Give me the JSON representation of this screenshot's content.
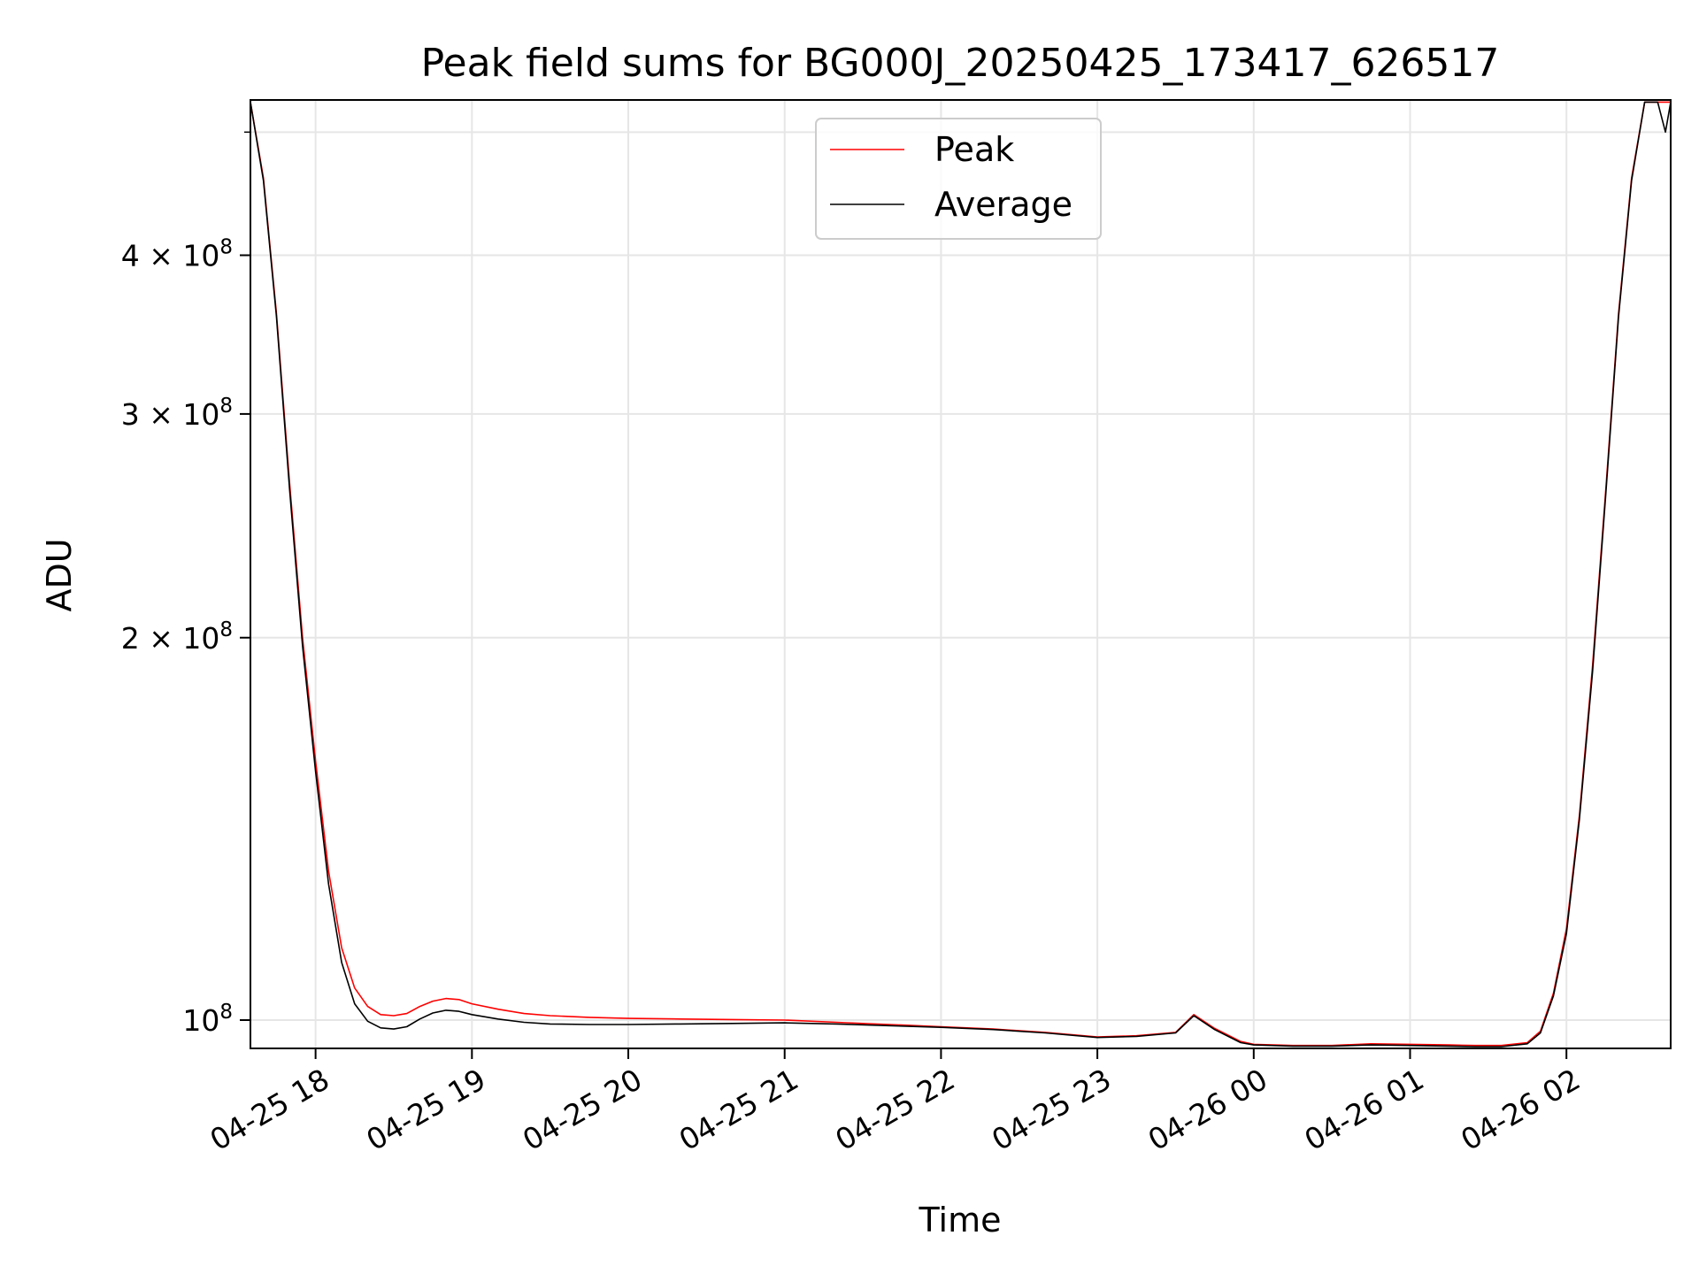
{
  "chart_data": {
    "type": "line",
    "title": "Peak field sums for BG000J_20250425_173417_626517",
    "xlabel": "Time",
    "ylabel": "ADU",
    "y_scale": "log",
    "x_range": [
      "2025-04-25 17:35",
      "2025-04-26 02:40"
    ],
    "y_range": [
      95000000,
      530000000
    ],
    "x_ticks": [
      {
        "value": "2025-04-25 18:00",
        "label": "04-25 18"
      },
      {
        "value": "2025-04-25 19:00",
        "label": "04-25 19"
      },
      {
        "value": "2025-04-25 20:00",
        "label": "04-25 20"
      },
      {
        "value": "2025-04-25 21:00",
        "label": "04-25 21"
      },
      {
        "value": "2025-04-25 22:00",
        "label": "04-25 22"
      },
      {
        "value": "2025-04-25 23:00",
        "label": "04-25 23"
      },
      {
        "value": "2025-04-26 00:00",
        "label": "04-26 00"
      },
      {
        "value": "2025-04-26 01:00",
        "label": "04-26 01"
      },
      {
        "value": "2025-04-26 02:00",
        "label": "04-26 02"
      }
    ],
    "y_ticks": [
      {
        "value": 100000000,
        "base": "10",
        "exp": "8"
      },
      {
        "value": 200000000,
        "base": "2 × 10",
        "exp": "8"
      },
      {
        "value": 300000000,
        "base": "3 × 10",
        "exp": "8"
      },
      {
        "value": 400000000,
        "base": "4 × 10",
        "exp": "8"
      }
    ],
    "y_minor_ticks": [
      500000000
    ],
    "grid": true,
    "legend_position": "upper-center",
    "series": [
      {
        "name": "Peak",
        "color": "#ff0000",
        "x": [
          "2025-04-25 17:35",
          "2025-04-25 17:40",
          "2025-04-25 17:45",
          "2025-04-25 17:50",
          "2025-04-25 17:55",
          "2025-04-25 18:00",
          "2025-04-25 18:05",
          "2025-04-25 18:10",
          "2025-04-25 18:15",
          "2025-04-25 18:20",
          "2025-04-25 18:25",
          "2025-04-25 18:30",
          "2025-04-25 18:35",
          "2025-04-25 18:40",
          "2025-04-25 18:45",
          "2025-04-25 18:50",
          "2025-04-25 18:55",
          "2025-04-25 19:00",
          "2025-04-25 19:10",
          "2025-04-25 19:20",
          "2025-04-25 19:30",
          "2025-04-25 19:45",
          "2025-04-25 20:00",
          "2025-04-25 20:20",
          "2025-04-25 20:40",
          "2025-04-25 21:00",
          "2025-04-25 21:20",
          "2025-04-25 21:40",
          "2025-04-25 22:00",
          "2025-04-25 22:20",
          "2025-04-25 22:40",
          "2025-04-25 23:00",
          "2025-04-25 23:15",
          "2025-04-25 23:30",
          "2025-04-25 23:37",
          "2025-04-25 23:45",
          "2025-04-25 23:55",
          "2025-04-26 00:00",
          "2025-04-26 00:15",
          "2025-04-26 00:30",
          "2025-04-26 00:45",
          "2025-04-26 01:00",
          "2025-04-26 01:15",
          "2025-04-26 01:25",
          "2025-04-26 01:35",
          "2025-04-26 01:45",
          "2025-04-26 01:50",
          "2025-04-26 01:55",
          "2025-04-26 02:00",
          "2025-04-26 02:05",
          "2025-04-26 02:10",
          "2025-04-26 02:15",
          "2025-04-26 02:20",
          "2025-04-26 02:25",
          "2025-04-26 02:30",
          "2025-04-26 02:35",
          "2025-04-26 02:38",
          "2025-04-26 02:40"
        ],
        "y": [
          528000000,
          460000000,
          360000000,
          265000000,
          200000000,
          160000000,
          131000000,
          114000000,
          106000000,
          102500000,
          101000000,
          100800000,
          101200000,
          102500000,
          103500000,
          104000000,
          103800000,
          103000000,
          102000000,
          101200000,
          100800000,
          100500000,
          100300000,
          100200000,
          100100000,
          100000000,
          99600000,
          99200000,
          98800000,
          98400000,
          97800000,
          97000000,
          97200000,
          97800000,
          101000000,
          98500000,
          96200000,
          95700000,
          95500000,
          95500000,
          95800000,
          95700000,
          95600000,
          95500000,
          95500000,
          96000000,
          98000000,
          105000000,
          118000000,
          145000000,
          190000000,
          260000000,
          360000000,
          460000000,
          528000000,
          528000000,
          528000000,
          528000000
        ]
      },
      {
        "name": "Average",
        "color": "#000000",
        "x": [
          "2025-04-25 17:35",
          "2025-04-25 17:40",
          "2025-04-25 17:45",
          "2025-04-25 17:50",
          "2025-04-25 17:55",
          "2025-04-25 18:00",
          "2025-04-25 18:05",
          "2025-04-25 18:10",
          "2025-04-25 18:15",
          "2025-04-25 18:20",
          "2025-04-25 18:25",
          "2025-04-25 18:30",
          "2025-04-25 18:35",
          "2025-04-25 18:40",
          "2025-04-25 18:45",
          "2025-04-25 18:50",
          "2025-04-25 18:55",
          "2025-04-25 19:00",
          "2025-04-25 19:10",
          "2025-04-25 19:20",
          "2025-04-25 19:30",
          "2025-04-25 19:45",
          "2025-04-25 20:00",
          "2025-04-25 20:20",
          "2025-04-25 20:40",
          "2025-04-25 21:00",
          "2025-04-25 21:20",
          "2025-04-25 21:40",
          "2025-04-25 22:00",
          "2025-04-25 22:20",
          "2025-04-25 22:40",
          "2025-04-25 23:00",
          "2025-04-25 23:15",
          "2025-04-25 23:30",
          "2025-04-25 23:37",
          "2025-04-25 23:45",
          "2025-04-25 23:55",
          "2025-04-26 00:00",
          "2025-04-26 00:15",
          "2025-04-26 00:30",
          "2025-04-26 00:45",
          "2025-04-26 01:00",
          "2025-04-26 01:15",
          "2025-04-26 01:25",
          "2025-04-26 01:35",
          "2025-04-26 01:45",
          "2025-04-26 01:50",
          "2025-04-26 01:55",
          "2025-04-26 02:00",
          "2025-04-26 02:05",
          "2025-04-26 02:10",
          "2025-04-26 02:15",
          "2025-04-26 02:20",
          "2025-04-26 02:25",
          "2025-04-26 02:30",
          "2025-04-26 02:35",
          "2025-04-26 02:38",
          "2025-04-26 02:40"
        ],
        "y": [
          528000000,
          458000000,
          358000000,
          262000000,
          197000000,
          157000000,
          128000000,
          111000000,
          103000000,
          99800000,
          98600000,
          98400000,
          98800000,
          100200000,
          101300000,
          101800000,
          101600000,
          101000000,
          100200000,
          99600000,
          99300000,
          99200000,
          99200000,
          99300000,
          99400000,
          99500000,
          99300000,
          99000000,
          98700000,
          98300000,
          97700000,
          96900000,
          97100000,
          97700000,
          100800000,
          98300000,
          96000000,
          95600000,
          95400000,
          95400000,
          95600000,
          95500000,
          95400000,
          95300000,
          95300000,
          95800000,
          97700000,
          104500000,
          117000000,
          144000000,
          188000000,
          258000000,
          358000000,
          458000000,
          528000000,
          528000000,
          500000000,
          528000000
        ]
      }
    ]
  }
}
